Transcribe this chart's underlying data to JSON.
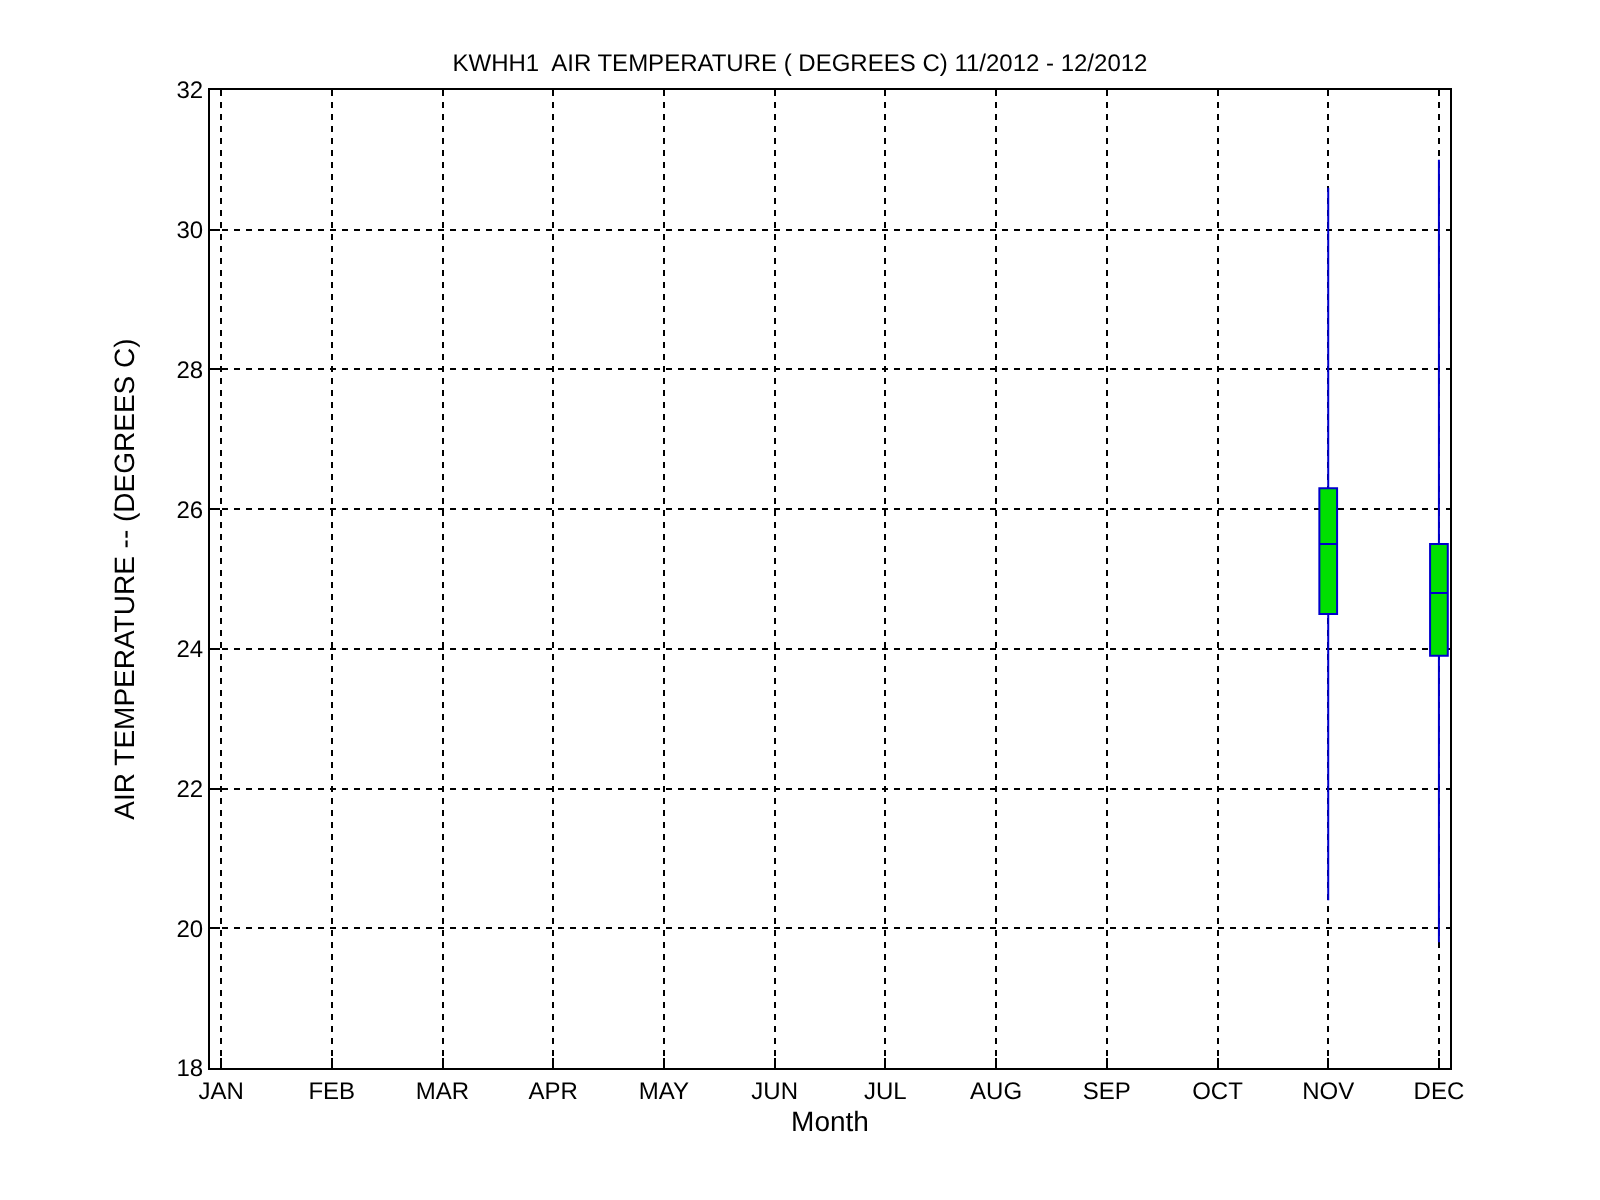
{
  "chart_data": {
    "type": "box",
    "title": "KWHH1  AIR TEMPERATURE ( DEGREES C) 11/2012 - 12/2012",
    "xlabel": "Month",
    "ylabel": "AIR TEMPERATURE -- (DEGREES C)",
    "categories": [
      "JAN",
      "FEB",
      "MAR",
      "APR",
      "MAY",
      "JUN",
      "JUL",
      "AUG",
      "SEP",
      "OCT",
      "NOV",
      "DEC"
    ],
    "color": "#00e000",
    "series": [
      {
        "color": "#0000cc",
        "boxes": [
          null,
          null,
          null,
          null,
          null,
          null,
          null,
          null,
          null,
          null,
          {
            "low": 20.4,
            "q1": 24.5,
            "median": 25.5,
            "q3": 26.3,
            "high": 30.6
          },
          {
            "low": 19.8,
            "q1": 23.9,
            "median": 24.8,
            "q3": 25.5,
            "high": 31.0
          }
        ]
      }
    ],
    "ylim": [
      18,
      32
    ],
    "yticks": [
      18,
      20,
      22,
      24,
      26,
      28,
      30,
      32
    ],
    "grid": true
  }
}
